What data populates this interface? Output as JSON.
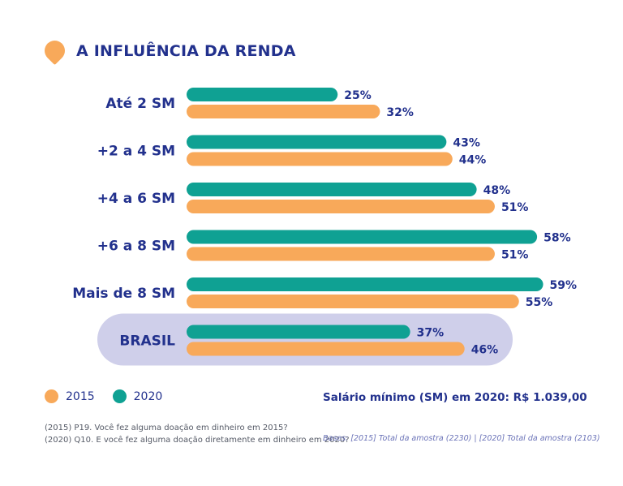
{
  "header": {
    "title": "A INFLUÊNCIA DA RENDA"
  },
  "colors": {
    "2015": "#F8A95A",
    "2020": "#0FA193",
    "text": "#22318D",
    "highlight": "#CFCFEA"
  },
  "chart_data": {
    "type": "bar",
    "orientation": "horizontal",
    "title": "A INFLUÊNCIA DA RENDA",
    "categories": [
      "Até 2 SM",
      "+2 a 4 SM",
      "+4 a 6 SM",
      "+6 a 8 SM",
      "Mais de 8 SM",
      "BRASIL"
    ],
    "series": [
      {
        "name": "2020",
        "values": [
          25,
          43,
          48,
          58,
          59,
          37
        ],
        "labels": [
          "25%",
          "43%",
          "48%",
          "58%",
          "59%",
          "37%"
        ]
      },
      {
        "name": "2015",
        "values": [
          32,
          44,
          51,
          51,
          55,
          46
        ],
        "labels": [
          "32%",
          "44%",
          "51%",
          "51%",
          "55%",
          "46%"
        ]
      }
    ],
    "highlighted_category": "BRASIL",
    "legend_position": "bottom-left"
  },
  "legend": {
    "items": [
      {
        "label": "2015"
      },
      {
        "label": "2020"
      }
    ]
  },
  "footer": {
    "min_wage": "Salário mínimo (SM) em 2020: R$ 1.039,00",
    "note_2015": "(2015) P19. Você fez alguma doação em dinheiro em 2015?",
    "note_2020": "(2020) Q10. E você fez alguma doação diretamente em dinheiro em 2020?",
    "bases": "Bases: [2015] Total da amostra (2230) | [2020] Total da amostra (2103)"
  }
}
